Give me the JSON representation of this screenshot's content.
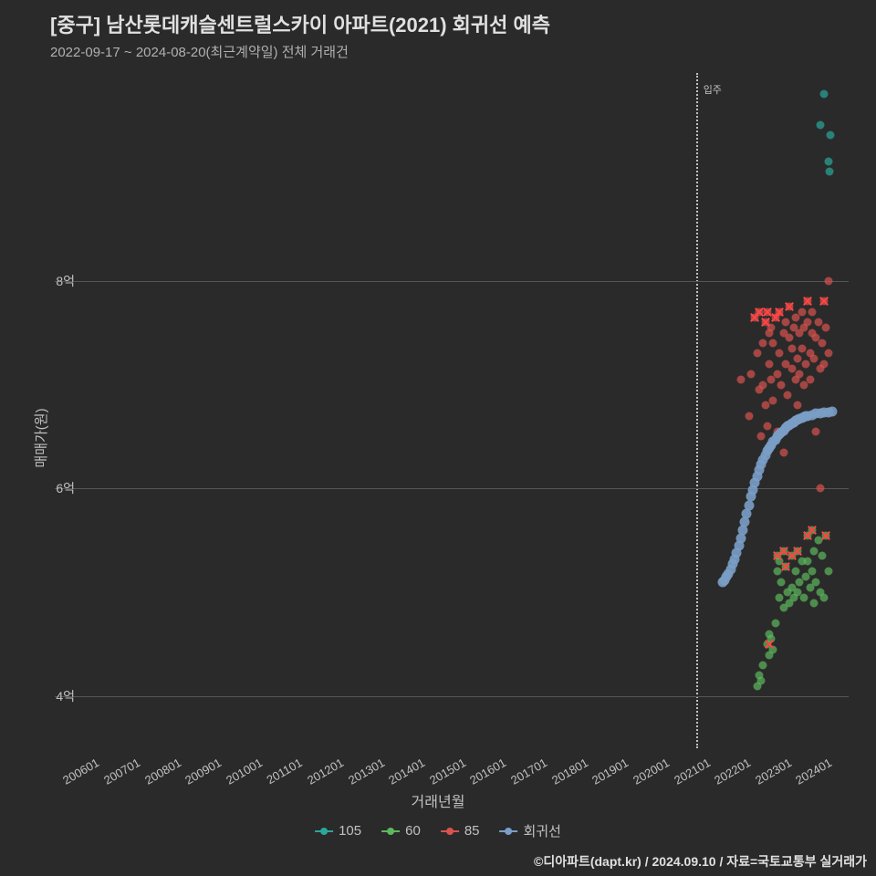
{
  "title": "[중구] 남산롯데캐슬센트럴스카이 아파트(2021) 회귀선 예측",
  "subtitle": "2022-09-17 ~ 2024-08-20(최근계약일) 전체 거래건",
  "y_axis": {
    "label": "매매가(원)",
    "ticks": [
      {
        "v": 4,
        "label": "4억"
      },
      {
        "v": 6,
        "label": "6억"
      },
      {
        "v": 8,
        "label": "8억"
      }
    ],
    "min": 3.5,
    "max": 10.0,
    "grid_color": "#555"
  },
  "x_axis": {
    "label": "거래년월",
    "min": 2005.5,
    "max": 2025.0,
    "ticks": [
      "200601",
      "200701",
      "200801",
      "200901",
      "201001",
      "201101",
      "201201",
      "201301",
      "201401",
      "201501",
      "201601",
      "201701",
      "201801",
      "201901",
      "202001",
      "202101",
      "202201",
      "202301",
      "202401"
    ],
    "tick_years": [
      2006,
      2007,
      2008,
      2009,
      2010,
      2011,
      2012,
      2013,
      2014,
      2015,
      2016,
      2017,
      2018,
      2019,
      2020,
      2021,
      2022,
      2023,
      2024
    ]
  },
  "vline": {
    "x": 2021.25,
    "label": "입주"
  },
  "legend": [
    {
      "name": "105",
      "color": "#2aa69a"
    },
    {
      "name": "60",
      "color": "#5cb85c"
    },
    {
      "name": "85",
      "color": "#d9534f"
    },
    {
      "name": "회귀선",
      "color": "#7a9ec7"
    }
  ],
  "colors": {
    "bg": "#2a2a2a",
    "text": "#c0c0c0",
    "series_105": "#2aa69a",
    "series_60": "#5cb85c",
    "series_85": "#d9534f",
    "regression": "#7a9ec7"
  },
  "regression": [
    [
      2021.9,
      5.1
    ],
    [
      2021.95,
      5.12
    ],
    [
      2022.0,
      5.15
    ],
    [
      2022.05,
      5.18
    ],
    [
      2022.1,
      5.22
    ],
    [
      2022.15,
      5.27
    ],
    [
      2022.2,
      5.32
    ],
    [
      2022.25,
      5.38
    ],
    [
      2022.3,
      5.45
    ],
    [
      2022.35,
      5.52
    ],
    [
      2022.4,
      5.6
    ],
    [
      2022.45,
      5.68
    ],
    [
      2022.5,
      5.76
    ],
    [
      2022.55,
      5.84
    ],
    [
      2022.6,
      5.92
    ],
    [
      2022.65,
      5.99
    ],
    [
      2022.7,
      6.06
    ],
    [
      2022.75,
      6.12
    ],
    [
      2022.8,
      6.18
    ],
    [
      2022.85,
      6.23
    ],
    [
      2022.9,
      6.28
    ],
    [
      2022.95,
      6.32
    ],
    [
      2023.0,
      6.36
    ],
    [
      2023.05,
      6.39
    ],
    [
      2023.1,
      6.42
    ],
    [
      2023.15,
      6.45
    ],
    [
      2023.2,
      6.47
    ],
    [
      2023.25,
      6.5
    ],
    [
      2023.3,
      6.52
    ],
    [
      2023.35,
      6.54
    ],
    [
      2023.4,
      6.56
    ],
    [
      2023.45,
      6.58
    ],
    [
      2023.5,
      6.6
    ],
    [
      2023.55,
      6.61
    ],
    [
      2023.6,
      6.63
    ],
    [
      2023.65,
      6.64
    ],
    [
      2023.7,
      6.65
    ],
    [
      2023.75,
      6.66
    ],
    [
      2023.8,
      6.67
    ],
    [
      2023.85,
      6.68
    ],
    [
      2023.9,
      6.69
    ],
    [
      2023.95,
      6.7
    ],
    [
      2024.0,
      6.7
    ],
    [
      2024.1,
      6.71
    ],
    [
      2024.2,
      6.72
    ],
    [
      2024.3,
      6.72
    ],
    [
      2024.4,
      6.73
    ],
    [
      2024.5,
      6.73
    ],
    [
      2024.6,
      6.74
    ]
  ],
  "series": {
    "105": [
      [
        2024.4,
        9.8
      ],
      [
        2024.3,
        9.5
      ],
      [
        2024.55,
        9.4
      ],
      [
        2024.5,
        9.15
      ],
      [
        2024.52,
        9.05
      ]
    ],
    "85": [
      [
        2022.35,
        7.05
      ],
      [
        2022.55,
        6.7
      ],
      [
        2022.6,
        7.1
      ],
      [
        2022.7,
        7.65
      ],
      [
        2022.75,
        7.3
      ],
      [
        2022.8,
        6.95
      ],
      [
        2022.8,
        7.7
      ],
      [
        2022.85,
        6.5
      ],
      [
        2022.9,
        7.4
      ],
      [
        2022.9,
        7.0
      ],
      [
        2022.95,
        6.8
      ],
      [
        2022.95,
        7.6
      ],
      [
        2023.0,
        7.7
      ],
      [
        2023.0,
        6.6
      ],
      [
        2023.05,
        7.2
      ],
      [
        2023.05,
        7.5
      ],
      [
        2023.1,
        7.05
      ],
      [
        2023.1,
        7.55
      ],
      [
        2023.15,
        6.85
      ],
      [
        2023.15,
        7.4
      ],
      [
        2023.2,
        7.65
      ],
      [
        2023.25,
        7.1
      ],
      [
        2023.25,
        6.55
      ],
      [
        2023.3,
        7.7
      ],
      [
        2023.3,
        7.3
      ],
      [
        2023.35,
        7.0
      ],
      [
        2023.4,
        7.5
      ],
      [
        2023.4,
        6.35
      ],
      [
        2023.45,
        7.2
      ],
      [
        2023.45,
        7.6
      ],
      [
        2023.5,
        6.9
      ],
      [
        2023.55,
        7.45
      ],
      [
        2023.55,
        7.75
      ],
      [
        2023.6,
        7.15
      ],
      [
        2023.6,
        7.35
      ],
      [
        2023.65,
        7.55
      ],
      [
        2023.7,
        7.05
      ],
      [
        2023.7,
        7.65
      ],
      [
        2023.75,
        7.25
      ],
      [
        2023.75,
        6.8
      ],
      [
        2023.8,
        7.5
      ],
      [
        2023.8,
        7.1
      ],
      [
        2023.85,
        7.7
      ],
      [
        2023.85,
        7.35
      ],
      [
        2023.9,
        7.0
      ],
      [
        2023.9,
        7.55
      ],
      [
        2023.95,
        7.2
      ],
      [
        2024.0,
        7.6
      ],
      [
        2024.0,
        7.8
      ],
      [
        2024.05,
        7.3
      ],
      [
        2024.05,
        7.05
      ],
      [
        2024.1,
        7.5
      ],
      [
        2024.1,
        7.7
      ],
      [
        2024.15,
        7.25
      ],
      [
        2024.2,
        7.45
      ],
      [
        2024.2,
        6.55
      ],
      [
        2024.25,
        7.6
      ],
      [
        2024.3,
        6.0
      ],
      [
        2024.3,
        7.15
      ],
      [
        2024.35,
        7.4
      ],
      [
        2024.4,
        7.8
      ],
      [
        2024.4,
        7.2
      ],
      [
        2024.45,
        7.55
      ],
      [
        2024.5,
        8.0
      ],
      [
        2024.5,
        7.3
      ]
    ],
    "85_x": [
      [
        2022.7,
        7.65
      ],
      [
        2022.8,
        7.7
      ],
      [
        2022.95,
        7.6
      ],
      [
        2023.0,
        7.7
      ],
      [
        2023.2,
        7.65
      ],
      [
        2023.3,
        7.7
      ],
      [
        2023.55,
        7.75
      ],
      [
        2024.0,
        7.8
      ],
      [
        2024.4,
        7.8
      ]
    ],
    "60": [
      [
        2022.75,
        4.1
      ],
      [
        2022.8,
        4.2
      ],
      [
        2022.85,
        4.15
      ],
      [
        2022.9,
        4.3
      ],
      [
        2023.0,
        4.5
      ],
      [
        2023.05,
        4.4
      ],
      [
        2023.05,
        4.6
      ],
      [
        2023.1,
        4.55
      ],
      [
        2023.15,
        4.45
      ],
      [
        2023.2,
        4.7
      ],
      [
        2023.25,
        5.35
      ],
      [
        2023.25,
        5.2
      ],
      [
        2023.3,
        5.3
      ],
      [
        2023.3,
        4.95
      ],
      [
        2023.35,
        5.1
      ],
      [
        2023.4,
        5.4
      ],
      [
        2023.4,
        4.85
      ],
      [
        2023.45,
        5.25
      ],
      [
        2023.5,
        5.0
      ],
      [
        2023.55,
        4.9
      ],
      [
        2023.6,
        5.35
      ],
      [
        2023.6,
        5.05
      ],
      [
        2023.65,
        4.95
      ],
      [
        2023.7,
        5.2
      ],
      [
        2023.75,
        5.4
      ],
      [
        2023.75,
        5.0
      ],
      [
        2023.8,
        5.1
      ],
      [
        2023.85,
        5.3
      ],
      [
        2023.9,
        4.95
      ],
      [
        2023.95,
        5.15
      ],
      [
        2024.0,
        5.55
      ],
      [
        2024.0,
        5.3
      ],
      [
        2024.05,
        5.05
      ],
      [
        2024.1,
        5.6
      ],
      [
        2024.1,
        5.2
      ],
      [
        2024.15,
        5.4
      ],
      [
        2024.15,
        4.9
      ],
      [
        2024.2,
        5.1
      ],
      [
        2024.25,
        5.5
      ],
      [
        2024.3,
        5.0
      ],
      [
        2024.35,
        5.35
      ],
      [
        2024.4,
        4.95
      ],
      [
        2024.45,
        5.55
      ],
      [
        2024.5,
        5.2
      ]
    ],
    "60_x": [
      [
        2023.25,
        5.35
      ],
      [
        2023.4,
        5.4
      ],
      [
        2023.45,
        5.25
      ],
      [
        2023.6,
        5.35
      ],
      [
        2023.75,
        5.4
      ],
      [
        2024.0,
        5.55
      ],
      [
        2024.1,
        5.6
      ],
      [
        2024.45,
        5.55
      ],
      [
        2023.05,
        4.5
      ]
    ]
  },
  "credit": "©디아파트(dapt.kr) / 2024.09.10 / 자료=국토교통부 실거래가"
}
